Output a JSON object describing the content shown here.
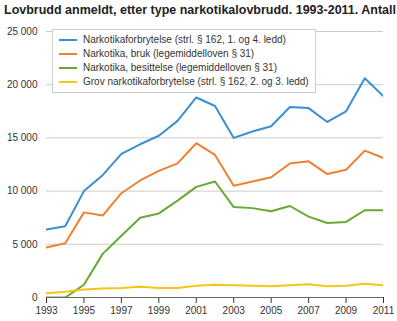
{
  "chart_data": {
    "type": "line",
    "title": "Lovbrudd anmeldt, etter type narkotikalovbrudd. 1993-2011. Antall",
    "x": [
      1993,
      1994,
      1995,
      1996,
      1997,
      1998,
      1999,
      2000,
      2001,
      2002,
      2003,
      2004,
      2005,
      2006,
      2007,
      2008,
      2009,
      2010,
      2011
    ],
    "series": [
      {
        "name": "Narkotikaforbrytelse (strl. § 162, 1. og 4. ledd)",
        "color": "#3a8fd0",
        "values": [
          6400,
          6700,
          10000,
          11500,
          13500,
          14400,
          15200,
          16600,
          18800,
          18000,
          15000,
          15600,
          16100,
          17900,
          17800,
          16500,
          17500,
          20600,
          18900
        ]
      },
      {
        "name": "Narkotika, bruk (legemiddelloven § 31)",
        "color": "#f08030",
        "values": [
          4700,
          5100,
          8000,
          7700,
          9800,
          11000,
          11900,
          12600,
          14500,
          13400,
          10500,
          10900,
          11300,
          12600,
          12800,
          11600,
          12000,
          13800,
          13100
        ]
      },
      {
        "name": "Narkotika, besittelse (legemiddelloven § 31)",
        "color": "#6aa832",
        "values": [
          0,
          0,
          1200,
          4100,
          5800,
          7500,
          7900,
          9100,
          10400,
          10900,
          8500,
          8400,
          8100,
          8600,
          7600,
          7000,
          7100,
          8200,
          8200
        ]
      },
      {
        "name": "Grov narkotikaforbrytelse (strl. § 162, 2. og 3. ledd)",
        "color": "#f5c518",
        "values": [
          400,
          550,
          750,
          850,
          900,
          1000,
          900,
          900,
          1100,
          1200,
          1150,
          1100,
          1050,
          1150,
          1250,
          1050,
          1100,
          1300,
          1150
        ]
      }
    ],
    "xlim": [
      1993,
      2011
    ],
    "xticks": [
      1993,
      1995,
      1997,
      1999,
      2001,
      2003,
      2005,
      2007,
      2009,
      2011
    ],
    "ylim": [
      0,
      25000
    ],
    "yticks": [
      0,
      {
        "value": 5000,
        "label": "5 000"
      },
      {
        "value": 10000,
        "label": "10 000"
      },
      {
        "value": 15000,
        "label": "15 000"
      },
      {
        "value": 20000,
        "label": "20 000"
      },
      {
        "value": 25000,
        "label": "25 000"
      }
    ],
    "grid": true,
    "legend": "top-left"
  }
}
